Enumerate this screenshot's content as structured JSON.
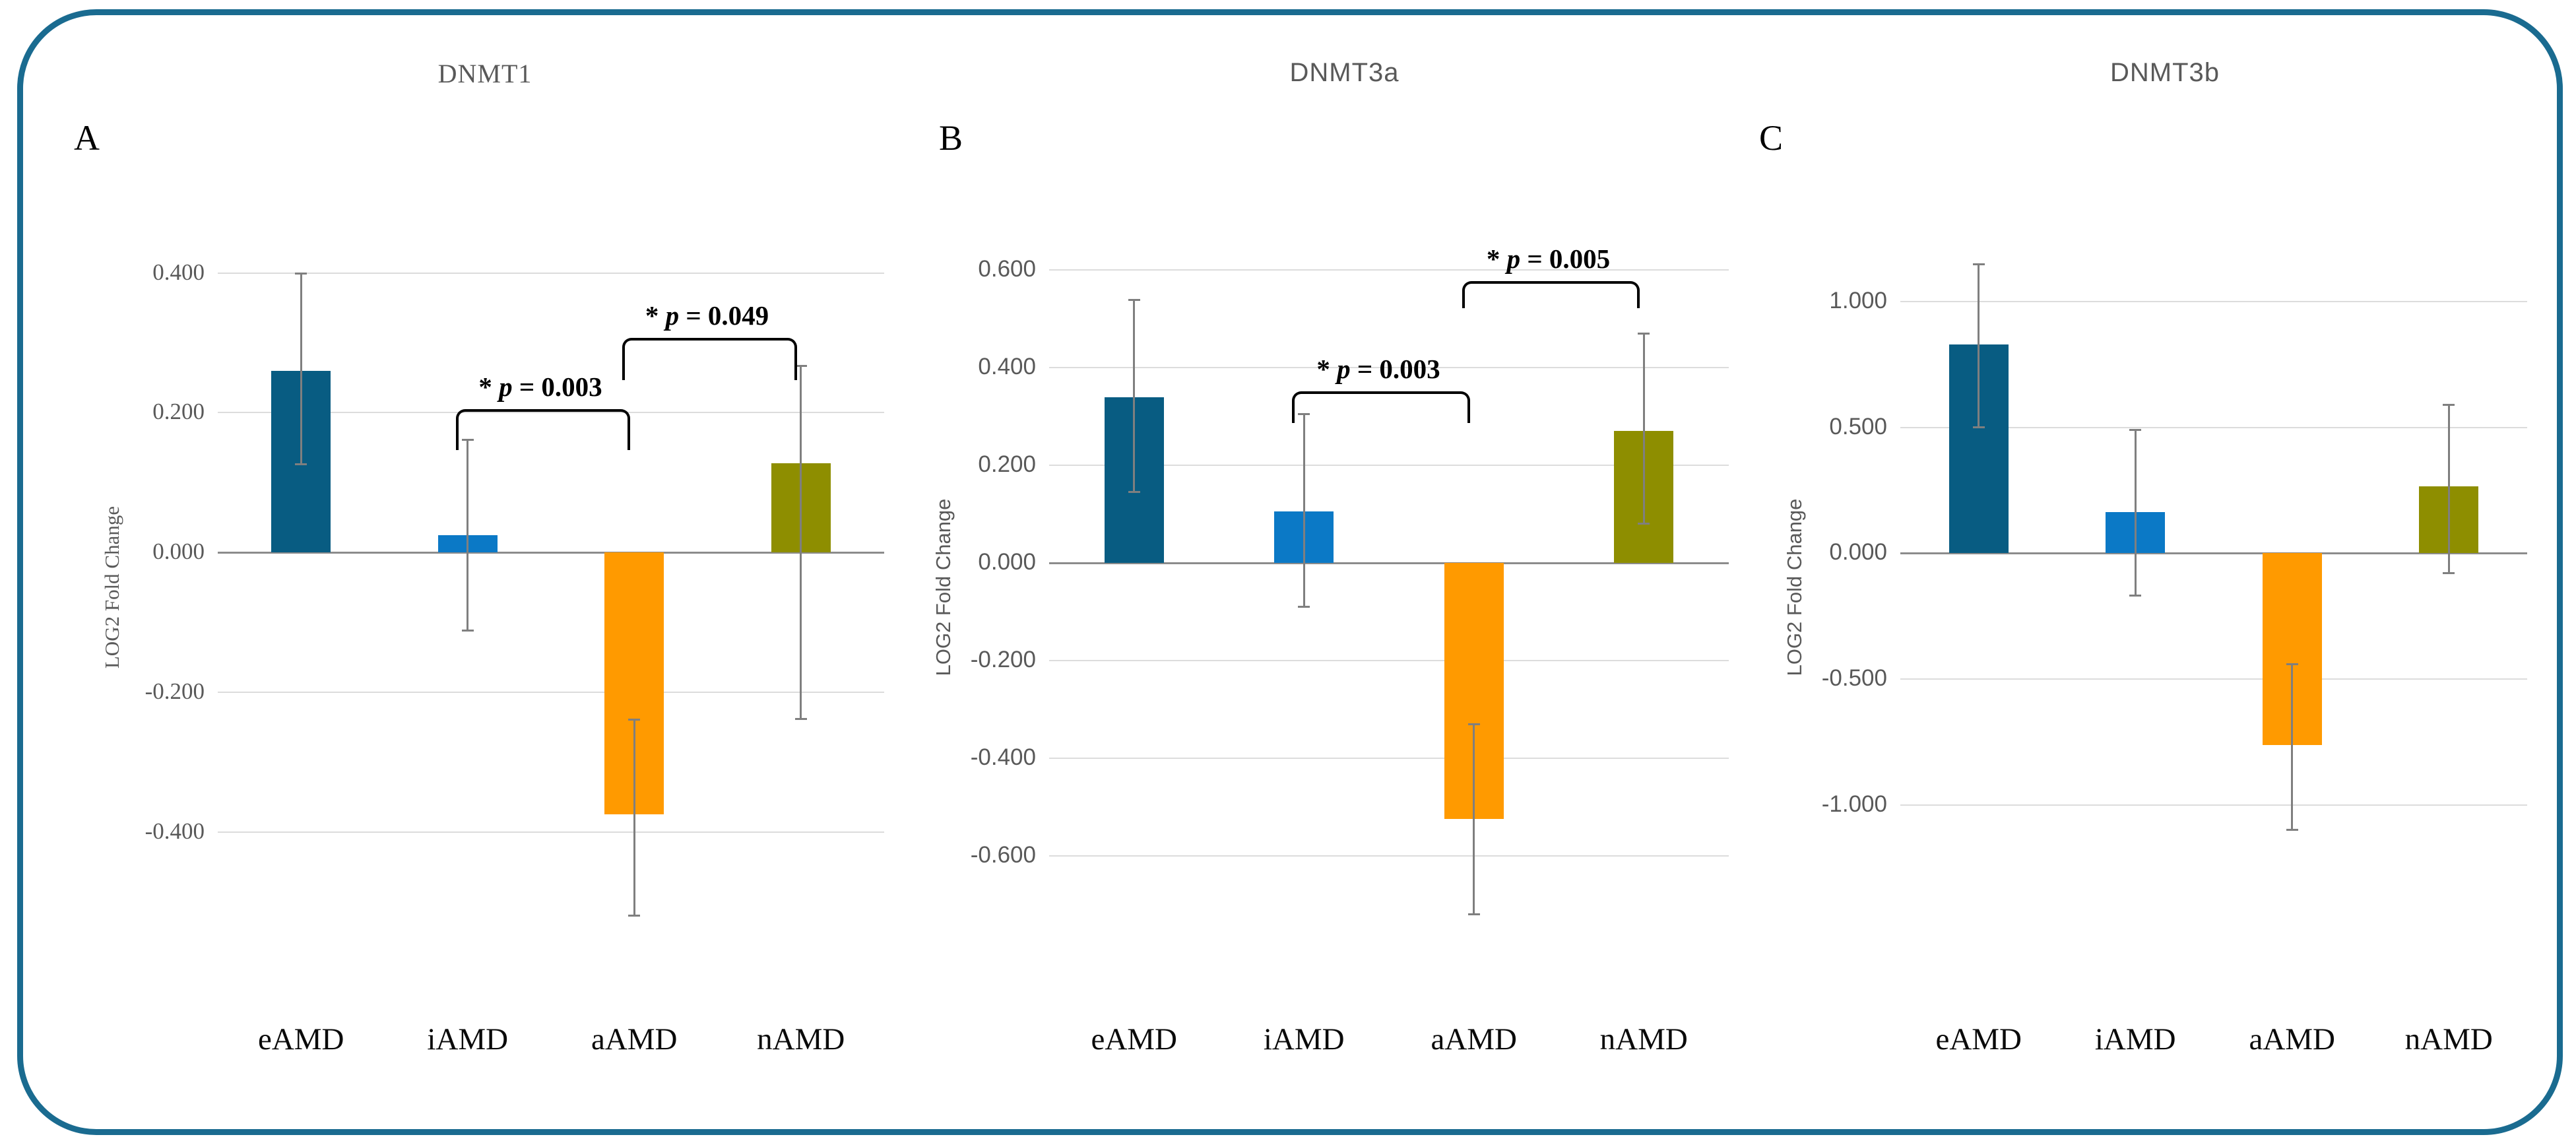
{
  "figure": {
    "background": "#FFFFFF",
    "border_color": "#1A6B90",
    "grid_color": "#DCDCDC",
    "axis_line_color": "#8C8C8C",
    "error_bar_color": "#7F7F7F",
    "axis_text_color": "#595959",
    "category_text_color": "#0A0A0A",
    "bar_colors": {
      "eAMD": "#085C82",
      "iAMD": "#0B79C6",
      "aAMD": "#FF9A00",
      "nAMD": "#8E8E00"
    }
  },
  "chart_data": [
    {
      "type": "bar",
      "panel_label": "A",
      "title": "DNMT1",
      "ylabel": "LOG2 Fold Change",
      "font_style": "serif",
      "legend": "none",
      "categories": [
        "eAMD",
        "iAMD",
        "aAMD",
        "nAMD"
      ],
      "values": [
        0.26,
        0.025,
        -0.375,
        0.128
      ],
      "error_low": [
        0.126,
        -0.112,
        -0.52,
        -0.239
      ],
      "error_high": [
        0.4,
        0.162,
        -0.239,
        0.267
      ],
      "colors": [
        "#085C82",
        "#0B79C6",
        "#FF9A00",
        "#8E8E00"
      ],
      "axis": {
        "tick_values": [
          0.4,
          0.2,
          0,
          -0.2,
          -0.4
        ],
        "tick_labels": [
          "0.400",
          "0.200",
          "0.000",
          "-0.200",
          "-0.400"
        ],
        "ylim": [
          -0.56,
          0.46
        ],
        "grid": true
      },
      "significance": [
        {
          "between": [
            "iAMD",
            "aAMD"
          ],
          "star": "*",
          "variable": "p",
          "rest": "= 0.003",
          "at_value": 0.205,
          "drop_value": 0.055
        },
        {
          "between": [
            "aAMD",
            "nAMD"
          ],
          "star": "*",
          "variable": "p",
          "rest": "= 0.049",
          "at_value": 0.307,
          "drop_value": 0.057
        }
      ]
    },
    {
      "type": "bar",
      "panel_label": "B",
      "title": "DNMT3a",
      "ylabel": "LOG2 Fold Change",
      "font_style": "sans",
      "legend": "none",
      "categories": [
        "eAMD",
        "iAMD",
        "aAMD",
        "nAMD"
      ],
      "values": [
        0.34,
        0.105,
        -0.525,
        0.27
      ],
      "error_low": [
        0.145,
        -0.09,
        -0.72,
        0.08
      ],
      "error_high": [
        0.54,
        0.305,
        -0.33,
        0.47
      ],
      "colors": [
        "#085C82",
        "#0B79C6",
        "#FF9A00",
        "#8E8E00"
      ],
      "axis": {
        "tick_values": [
          0.6,
          0.4,
          0.2,
          0,
          -0.2,
          -0.4,
          -0.6
        ],
        "tick_labels": [
          "0.600",
          "0.400",
          "0.200",
          "0.000",
          "-0.200",
          "-0.400",
          "-0.600"
        ],
        "ylim": [
          -0.78,
          0.68
        ],
        "grid": true
      },
      "significance": [
        {
          "between": [
            "iAMD",
            "aAMD"
          ],
          "star": "*",
          "variable": "p",
          "rest": "= 0.003",
          "at_value": 0.352,
          "drop_value": 0.06
        },
        {
          "between": [
            "aAMD",
            "nAMD"
          ],
          "star": "*",
          "variable": "p",
          "rest": "= 0.005",
          "at_value": 0.577,
          "drop_value": 0.05
        }
      ]
    },
    {
      "type": "bar",
      "panel_label": "C",
      "title": "DNMT3b",
      "ylabel": "LOG2 Fold Change",
      "font_style": "sans",
      "legend": "none",
      "categories": [
        "eAMD",
        "iAMD",
        "aAMD",
        "nAMD"
      ],
      "values": [
        0.83,
        0.165,
        -0.76,
        0.265
      ],
      "error_low": [
        0.5,
        -0.17,
        -1.1,
        -0.08
      ],
      "error_high": [
        1.15,
        0.49,
        -0.44,
        0.59
      ],
      "colors": [
        "#085C82",
        "#0B79C6",
        "#FF9A00",
        "#8E8E00"
      ],
      "axis": {
        "tick_values": [
          1,
          0.5,
          0,
          -0.5,
          -1
        ],
        "tick_labels": [
          "1.000",
          "0.500",
          "0.000",
          "-0.500",
          "-1.000"
        ],
        "ylim": [
          -1.55,
          1.28
        ],
        "grid": true
      },
      "significance": []
    }
  ]
}
